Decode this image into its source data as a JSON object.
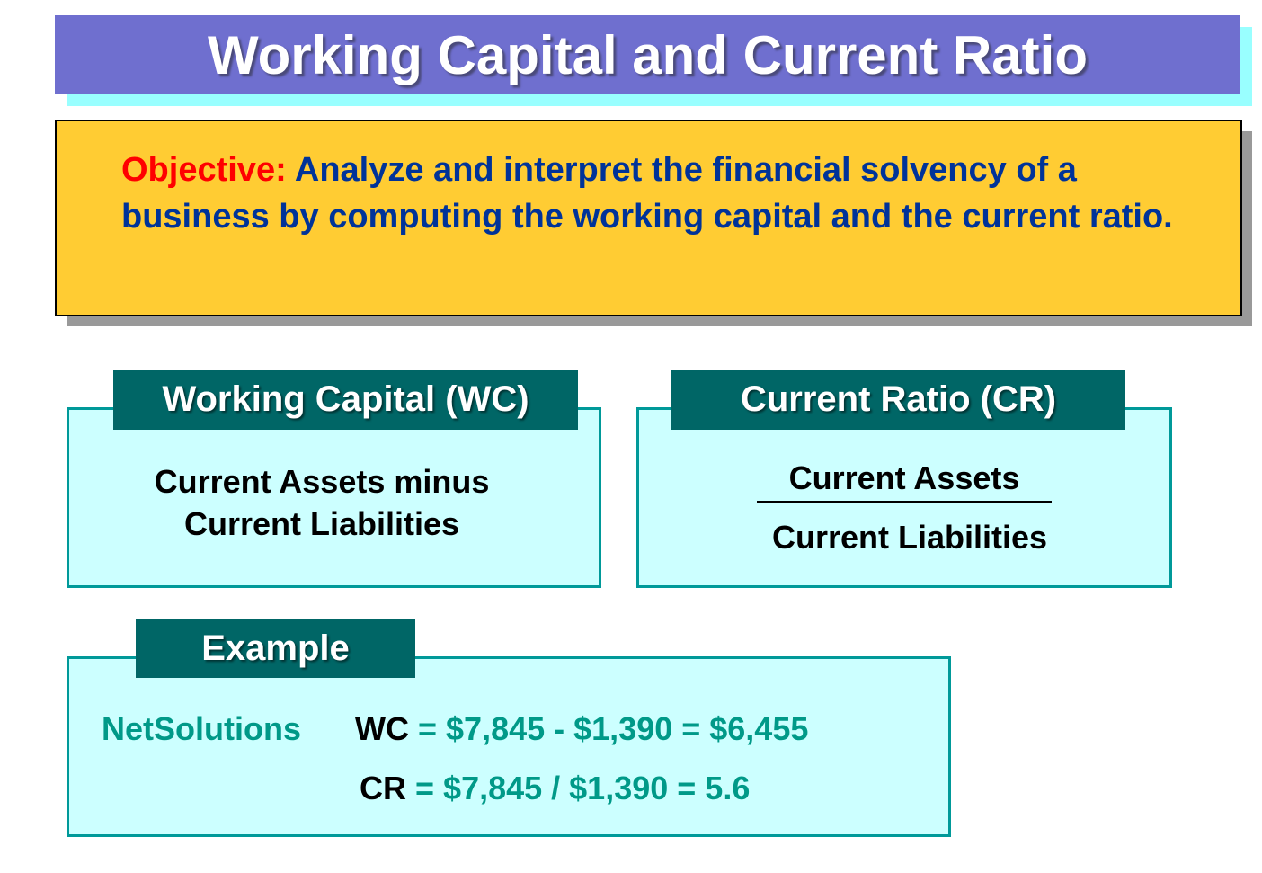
{
  "title": "Working Capital and Current Ratio",
  "objective": {
    "label": "Objective:",
    "text": "Analyze and interpret the financial solvency of a business by computing the working capital and the current ratio."
  },
  "working_capital": {
    "header": "Working Capital (WC)",
    "line1": "Current Assets minus",
    "line2": "Current Liabilities"
  },
  "current_ratio": {
    "header": "Current Ratio (CR)",
    "numerator": "Current Assets",
    "denominator": "Current Liabilities"
  },
  "example": {
    "header": "Example",
    "company": "NetSolutions",
    "wc_tag": "WC",
    "wc_formula": "= $7,845 - $1,390 = $6,455",
    "cr_tag": "CR",
    "cr_formula": "= $7,845 / $1,390 = 5.6"
  },
  "colors": {
    "title_bar": "#6f6fcf",
    "title_shadow": "#99ffff",
    "objective_bg": "#ffcc33",
    "objective_label": "#ff0000",
    "objective_text": "#003399",
    "box_bg": "#ccffff",
    "box_border": "#009999",
    "header_bg": "#006666",
    "example_text": "#009988"
  }
}
